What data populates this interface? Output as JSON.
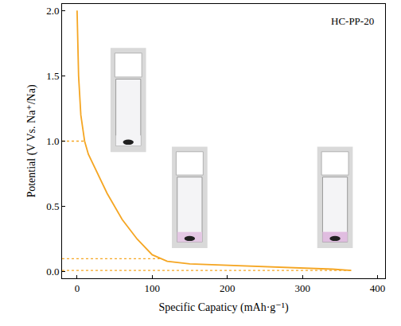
{
  "chart_data": {
    "type": "line",
    "annotations": [
      "HC-PP-20"
    ],
    "x_label": "Specific Capaticy (mAh·g⁻¹)",
    "y_label": "Potential (V Vs. Na⁺/Na)",
    "xlim": [
      -20,
      410
    ],
    "ylim": [
      -0.05,
      2.05
    ],
    "xticks": [
      0,
      100,
      200,
      300,
      400
    ],
    "yticks": [
      {
        "value": 0,
        "label": "0.0"
      },
      0.5,
      {
        "value": 1,
        "label": "1.0"
      },
      1.5,
      {
        "value": 2,
        "label": "2.0"
      }
    ],
    "grid": false,
    "series": [
      {
        "color": "#f5a623",
        "line_style": "solid",
        "x": [
          0,
          2,
          5,
          10,
          15,
          25,
          40,
          60,
          80,
          100,
          120,
          150,
          200,
          250,
          300,
          340,
          365
        ],
        "values": [
          2.0,
          1.5,
          1.2,
          1.0,
          0.9,
          0.78,
          0.6,
          0.4,
          0.25,
          0.13,
          0.08,
          0.06,
          0.05,
          0.04,
          0.03,
          0.02,
          0.01
        ]
      },
      {
        "color": "#f5a623",
        "line_style": "dotted",
        "x": [
          -20,
          10
        ],
        "values": [
          1.0,
          1.0
        ]
      },
      {
        "color": "#f5a623",
        "line_style": "dotted",
        "x": [
          -20,
          110
        ],
        "values": [
          0.1,
          0.1
        ]
      },
      {
        "color": "#f5a623",
        "line_style": "dotted",
        "x": [
          -20,
          365
        ],
        "values": [
          0.01,
          0.01
        ]
      }
    ]
  }
}
